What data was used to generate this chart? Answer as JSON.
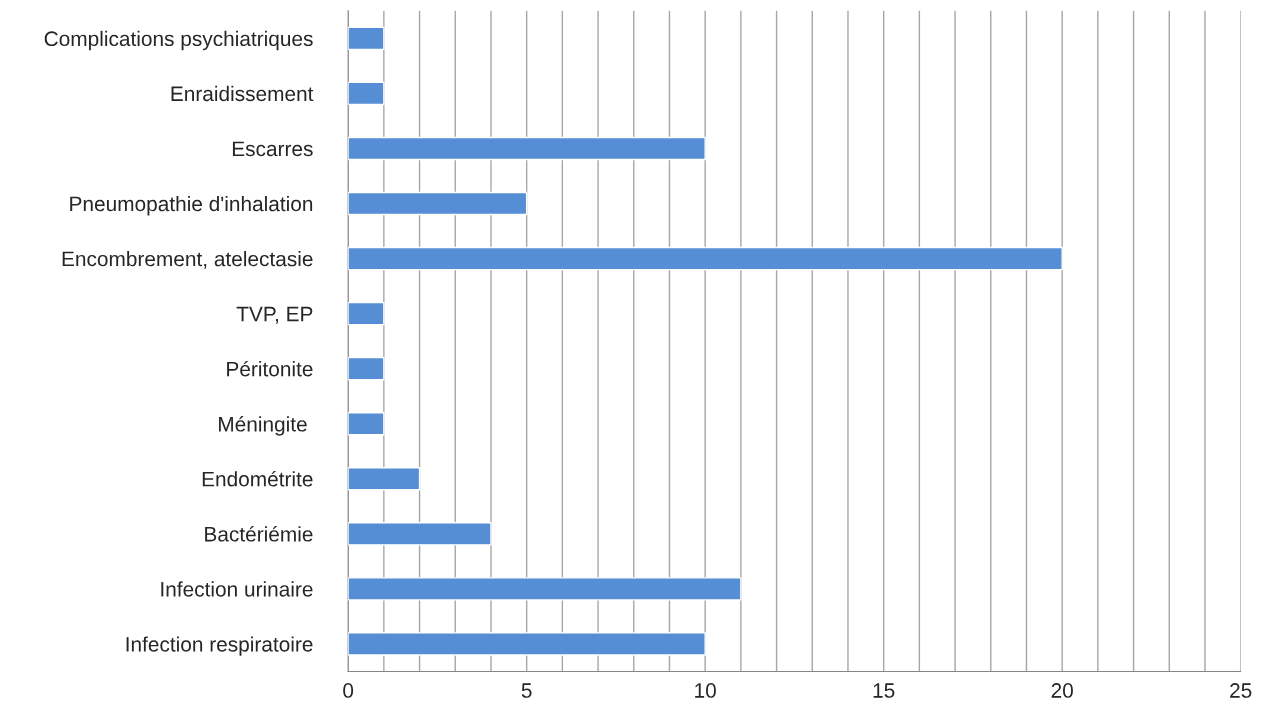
{
  "chart_data": {
    "type": "bar",
    "orientation": "horizontal",
    "categories": [
      "Complications psychiatriques",
      "Enraidissement",
      "Escarres",
      "Pneumopathie d'inhalation",
      "Encombrement, atelectasie",
      "TVP, EP",
      "Péritonite",
      "Méningite ",
      "Endométrite",
      "Bactériémie",
      "Infection urinaire",
      "Infection respiratoire"
    ],
    "values": [
      1,
      1,
      10,
      5,
      20,
      1,
      1,
      1,
      2,
      4,
      11,
      10
    ],
    "color": "#558ed5",
    "xlim": [
      0,
      25
    ],
    "xticks": [
      0,
      {
        "value": 1,
        "label": null
      },
      {
        "value": 2,
        "label": null
      },
      {
        "value": 3,
        "label": null
      },
      {
        "value": 4,
        "label": null
      },
      5,
      {
        "value": 6,
        "label": null
      },
      {
        "value": 7,
        "label": null
      },
      {
        "value": 8,
        "label": null
      },
      {
        "value": 9,
        "label": null
      },
      10,
      {
        "value": 11,
        "label": null
      },
      {
        "value": 12,
        "label": null
      },
      {
        "value": 13,
        "label": null
      },
      {
        "value": 14,
        "label": null
      },
      15,
      {
        "value": 16,
        "label": null
      },
      {
        "value": 17,
        "label": null
      },
      {
        "value": 18,
        "label": null
      },
      {
        "value": 19,
        "label": null
      },
      20,
      {
        "value": 21,
        "label": null
      },
      {
        "value": 22,
        "label": null
      },
      {
        "value": 23,
        "label": null
      },
      {
        "value": 24,
        "label": null
      },
      25
    ],
    "grid": "x",
    "legend": false
  }
}
